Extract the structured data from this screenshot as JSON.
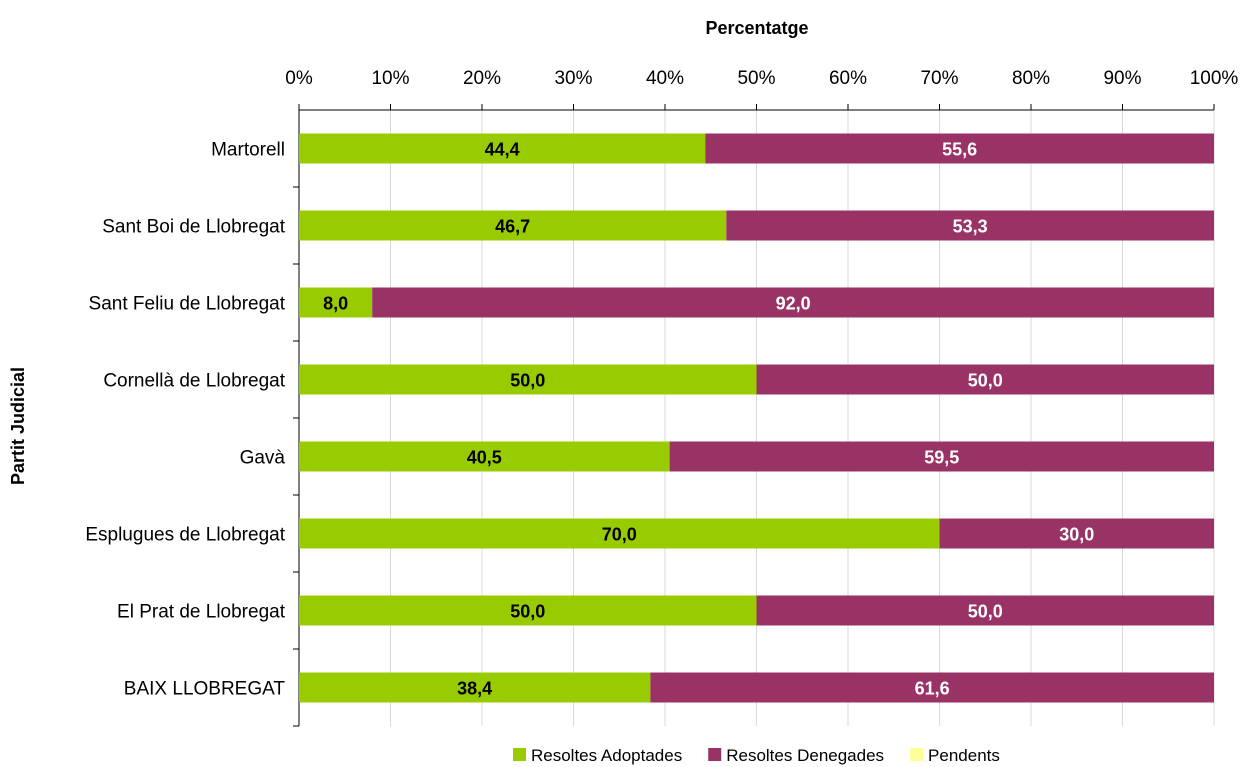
{
  "chart_data": {
    "type": "bar",
    "orientation": "horizontal",
    "stacked": true,
    "title": "",
    "xlabel": "Percentatge",
    "ylabel": "Partit Judicial",
    "xlim": [
      0,
      100
    ],
    "x_ticks": [
      "0%",
      "10%",
      "20%",
      "30%",
      "40%",
      "50%",
      "60%",
      "70%",
      "80%",
      "90%",
      "100%"
    ],
    "grid": true,
    "legend_position": "bottom",
    "categories": [
      "Martorell",
      "Sant Boi de Llobregat",
      "Sant Feliu de Llobregat",
      "Cornellà de Llobregat",
      "Gavà",
      "Esplugues de Llobregat",
      "El Prat de Llobregat",
      "BAIX LLOBREGAT"
    ],
    "series": [
      {
        "name": "Resoltes Adoptades",
        "color": "#99CC00",
        "label_color": "#000000",
        "values": [
          44.4,
          46.7,
          8.0,
          50.0,
          40.5,
          70.0,
          50.0,
          38.4
        ],
        "labels": [
          "44,4",
          "46,7",
          "8,0",
          "50,0",
          "40,5",
          "70,0",
          "50,0",
          "38,4"
        ]
      },
      {
        "name": "Resoltes Denegades",
        "color": "#993366",
        "label_color": "#FFFFFF",
        "values": [
          55.6,
          53.3,
          92.0,
          50.0,
          59.5,
          30.0,
          50.0,
          61.6
        ],
        "labels": [
          "55,6",
          "53,3",
          "92,0",
          "50,0",
          "59,5",
          "30,0",
          "50,0",
          "61,6"
        ]
      },
      {
        "name": "Pendents",
        "color": "#FFFF99",
        "label_color": "#000000",
        "values": [
          0,
          0,
          0,
          0,
          0,
          0,
          0,
          0
        ],
        "labels": []
      }
    ]
  }
}
